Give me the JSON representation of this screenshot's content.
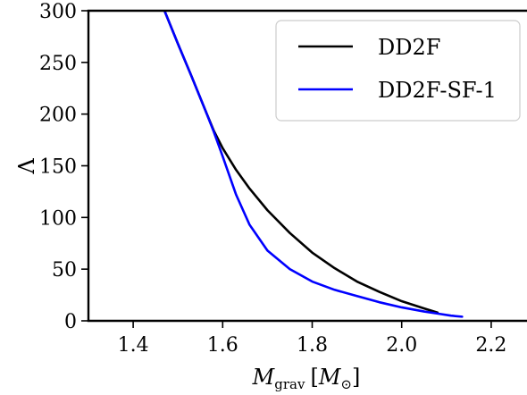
{
  "chart_data": {
    "type": "line",
    "title": "",
    "xlabel": "M_grav [M_⊙]",
    "xlabel_parts": {
      "main": "M",
      "sub": "grav",
      "open": "[",
      "unit": "M",
      "unit_sub": "⊙",
      "close": "]"
    },
    "ylabel": "Λ",
    "xlim": [
      1.3,
      2.28
    ],
    "ylim": [
      0,
      300
    ],
    "xticks": [
      1.4,
      1.6,
      1.8,
      2.0,
      2.2
    ],
    "xtick_labels": [
      "1.4",
      "1.6",
      "1.8",
      "2.0",
      "2.2"
    ],
    "yticks": [
      0,
      50,
      100,
      150,
      200,
      250,
      300
    ],
    "ytick_labels": [
      "0",
      "50",
      "100",
      "150",
      "200",
      "250",
      "300"
    ],
    "grid": false,
    "legend_position": "top-right",
    "series": [
      {
        "name": "DD2F",
        "color": "#000000",
        "x": [
          1.47,
          1.5,
          1.53,
          1.56,
          1.58,
          1.6,
          1.63,
          1.66,
          1.7,
          1.75,
          1.8,
          1.85,
          1.9,
          1.95,
          2.0,
          2.05,
          2.08
        ],
        "y": [
          300,
          268,
          237,
          205,
          184,
          167,
          146,
          128,
          107,
          85,
          66,
          51,
          38,
          28,
          19,
          12,
          8
        ]
      },
      {
        "name": "DD2F-SF-1",
        "color": "#0000ff",
        "x": [
          1.47,
          1.5,
          1.53,
          1.56,
          1.58,
          1.6,
          1.63,
          1.66,
          1.7,
          1.75,
          1.8,
          1.85,
          1.9,
          1.95,
          2.0,
          2.05,
          2.08,
          2.11,
          2.135
        ],
        "y": [
          300,
          268,
          237,
          205,
          183,
          159,
          122,
          93,
          68,
          50,
          38,
          30,
          24,
          18,
          13,
          9,
          7,
          5,
          4
        ]
      }
    ]
  }
}
